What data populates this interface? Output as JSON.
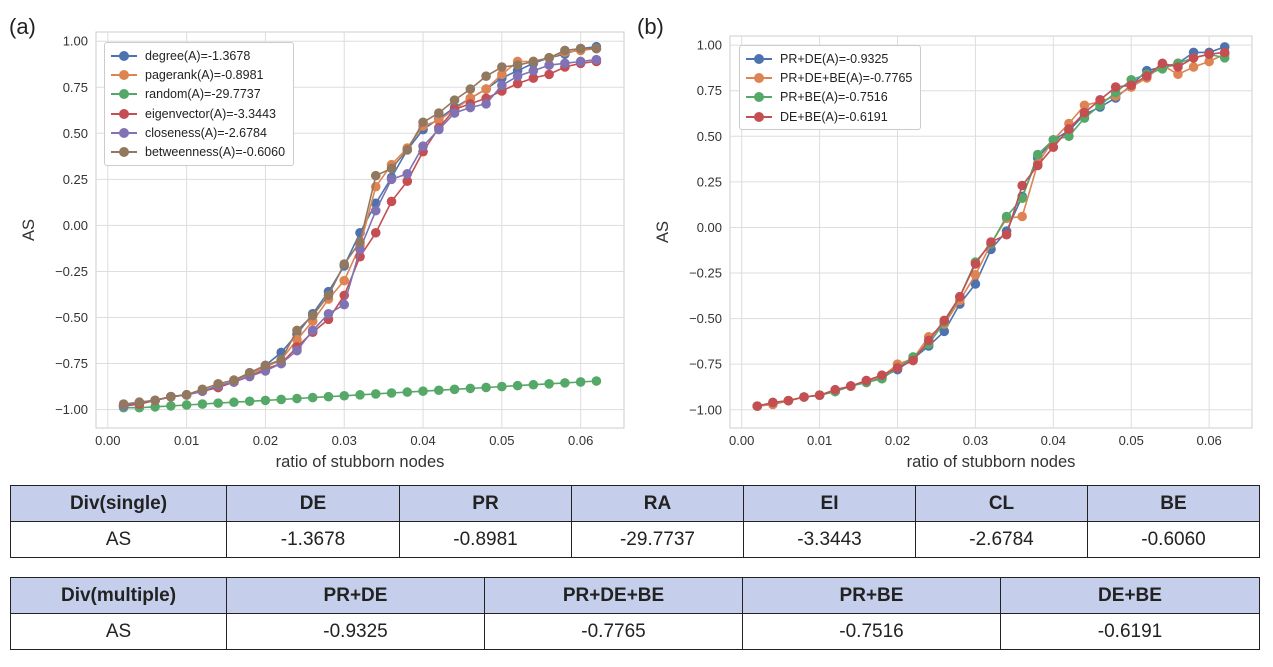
{
  "panel_a_label": "(a)",
  "panel_b_label": "(b)",
  "chart_data": [
    {
      "type": "line",
      "panel": "(a)",
      "xlabel": "ratio of stubborn nodes",
      "ylabel": "AS",
      "xlim": [
        -0.0015,
        0.0655
      ],
      "ylim": [
        -1.1,
        1.05
      ],
      "xticks": [
        0.0,
        0.01,
        0.02,
        0.03,
        0.04,
        0.05,
        0.06
      ],
      "xtick_labels": [
        "0.00",
        "0.01",
        "0.02",
        "0.03",
        "0.04",
        "0.05",
        "0.06"
      ],
      "yticks": [
        -1.0,
        -0.75,
        -0.5,
        -0.25,
        0.0,
        0.25,
        0.5,
        0.75,
        1.0
      ],
      "ytick_labels": [
        "−1.00",
        "−0.75",
        "−0.50",
        "−0.25",
        "0.00",
        "0.25",
        "0.50",
        "0.75",
        "1.00"
      ],
      "grid": true,
      "legend_position": "top-left",
      "x": [
        0.002,
        0.004,
        0.006,
        0.008,
        0.01,
        0.012,
        0.014,
        0.016,
        0.018,
        0.02,
        0.022,
        0.024,
        0.026,
        0.028,
        0.03,
        0.032,
        0.034,
        0.036,
        0.038,
        0.04,
        0.042,
        0.044,
        0.046,
        0.048,
        0.05,
        0.052,
        0.054,
        0.056,
        0.058,
        0.06,
        0.062
      ],
      "series": [
        {
          "name": "degree(A)=-1.3678",
          "color": "#4c72b0",
          "values": [
            -0.98,
            -0.97,
            -0.95,
            -0.93,
            -0.92,
            -0.9,
            -0.88,
            -0.85,
            -0.8,
            -0.76,
            -0.69,
            -0.59,
            -0.48,
            -0.36,
            -0.22,
            -0.04,
            0.12,
            0.26,
            0.41,
            0.52,
            0.58,
            0.64,
            0.69,
            0.74,
            0.8,
            0.84,
            0.88,
            0.91,
            0.93,
            0.96,
            0.97
          ]
        },
        {
          "name": "pagerank(A)=-0.8981",
          "color": "#dd8452",
          "values": [
            -0.98,
            -0.96,
            -0.95,
            -0.93,
            -0.92,
            -0.9,
            -0.87,
            -0.85,
            -0.81,
            -0.77,
            -0.73,
            -0.62,
            -0.52,
            -0.4,
            -0.3,
            -0.11,
            0.21,
            0.33,
            0.42,
            0.54,
            0.57,
            0.63,
            0.69,
            0.74,
            0.82,
            0.89,
            0.89,
            0.91,
            0.94,
            0.95,
            0.96
          ]
        },
        {
          "name": "random(A)=-29.7737",
          "color": "#55a868",
          "values": [
            -0.99,
            -0.99,
            -0.985,
            -0.98,
            -0.975,
            -0.97,
            -0.965,
            -0.96,
            -0.955,
            -0.95,
            -0.945,
            -0.94,
            -0.935,
            -0.93,
            -0.925,
            -0.92,
            -0.915,
            -0.91,
            -0.905,
            -0.9,
            -0.895,
            -0.89,
            -0.885,
            -0.88,
            -0.875,
            -0.87,
            -0.865,
            -0.86,
            -0.855,
            -0.85,
            -0.845
          ]
        },
        {
          "name": "eigenvector(A)=-3.3443",
          "color": "#c44e52",
          "values": [
            -0.98,
            -0.97,
            -0.95,
            -0.93,
            -0.92,
            -0.9,
            -0.88,
            -0.85,
            -0.82,
            -0.78,
            -0.75,
            -0.66,
            -0.58,
            -0.51,
            -0.38,
            -0.17,
            -0.04,
            0.13,
            0.24,
            0.4,
            0.53,
            0.63,
            0.66,
            0.69,
            0.73,
            0.77,
            0.8,
            0.82,
            0.86,
            0.88,
            0.89
          ]
        },
        {
          "name": "closeness(A)=-2.6784",
          "color": "#8172b3",
          "values": [
            -0.98,
            -0.96,
            -0.95,
            -0.93,
            -0.92,
            -0.9,
            -0.87,
            -0.85,
            -0.82,
            -0.79,
            -0.75,
            -0.68,
            -0.57,
            -0.48,
            -0.43,
            -0.13,
            0.08,
            0.25,
            0.28,
            0.43,
            0.52,
            0.61,
            0.64,
            0.66,
            0.76,
            0.81,
            0.84,
            0.87,
            0.88,
            0.89,
            0.9
          ]
        },
        {
          "name": "betweenness(A)=-0.6060",
          "color": "#937860",
          "values": [
            -0.97,
            -0.96,
            -0.95,
            -0.93,
            -0.92,
            -0.89,
            -0.86,
            -0.84,
            -0.8,
            -0.76,
            -0.73,
            -0.57,
            -0.49,
            -0.38,
            -0.21,
            -0.09,
            0.27,
            0.31,
            0.41,
            0.56,
            0.61,
            0.68,
            0.74,
            0.81,
            0.86,
            0.87,
            0.89,
            0.91,
            0.95,
            0.96,
            0.96
          ]
        }
      ]
    },
    {
      "type": "line",
      "panel": "(b)",
      "xlabel": "ratio of stubborn nodes",
      "ylabel": "AS",
      "xlim": [
        -0.0015,
        0.0655
      ],
      "ylim": [
        -1.1,
        1.05
      ],
      "xticks": [
        0.0,
        0.01,
        0.02,
        0.03,
        0.04,
        0.05,
        0.06
      ],
      "xtick_labels": [
        "0.00",
        "0.01",
        "0.02",
        "0.03",
        "0.04",
        "0.05",
        "0.06"
      ],
      "yticks": [
        -1.0,
        -0.75,
        -0.5,
        -0.25,
        0.0,
        0.25,
        0.5,
        0.75,
        1.0
      ],
      "ytick_labels": [
        "−1.00",
        "−0.75",
        "−0.50",
        "−0.25",
        "0.00",
        "0.25",
        "0.50",
        "0.75",
        "1.00"
      ],
      "grid": true,
      "legend_position": "top-left",
      "x": [
        0.002,
        0.004,
        0.006,
        0.008,
        0.01,
        0.012,
        0.014,
        0.016,
        0.018,
        0.02,
        0.022,
        0.024,
        0.026,
        0.028,
        0.03,
        0.032,
        0.034,
        0.036,
        0.038,
        0.04,
        0.042,
        0.044,
        0.046,
        0.048,
        0.05,
        0.052,
        0.054,
        0.056,
        0.058,
        0.06,
        0.062
      ],
      "series": [
        {
          "name": "PR+DE(A)=-0.9325",
          "color": "#4c72b0",
          "values": [
            -0.98,
            -0.97,
            -0.95,
            -0.93,
            -0.92,
            -0.9,
            -0.87,
            -0.85,
            -0.82,
            -0.78,
            -0.72,
            -0.65,
            -0.57,
            -0.42,
            -0.31,
            -0.12,
            -0.02,
            0.17,
            0.38,
            0.48,
            0.53,
            0.62,
            0.66,
            0.71,
            0.78,
            0.86,
            0.88,
            0.9,
            0.96,
            0.96,
            0.99
          ]
        },
        {
          "name": "PR+DE+BE(A)=-0.7765",
          "color": "#dd8452",
          "values": [
            -0.98,
            -0.97,
            -0.95,
            -0.93,
            -0.92,
            -0.9,
            -0.87,
            -0.84,
            -0.82,
            -0.75,
            -0.72,
            -0.6,
            -0.53,
            -0.4,
            -0.26,
            -0.09,
            0.05,
            0.06,
            0.35,
            0.48,
            0.57,
            0.67,
            0.69,
            0.72,
            0.77,
            0.82,
            0.89,
            0.84,
            0.88,
            0.91,
            0.95
          ]
        },
        {
          "name": "PR+BE(A)=-0.7516",
          "color": "#55a868",
          "values": [
            -0.98,
            -0.96,
            -0.95,
            -0.93,
            -0.92,
            -0.9,
            -0.87,
            -0.85,
            -0.83,
            -0.77,
            -0.71,
            -0.64,
            -0.52,
            -0.38,
            -0.19,
            -0.09,
            0.06,
            0.16,
            0.4,
            0.48,
            0.5,
            0.6,
            0.67,
            0.74,
            0.81,
            0.84,
            0.87,
            0.9,
            0.93,
            0.95,
            0.93
          ]
        },
        {
          "name": "DE+BE(A)=-0.6191",
          "color": "#c44e52",
          "values": [
            -0.98,
            -0.96,
            -0.95,
            -0.93,
            -0.92,
            -0.89,
            -0.87,
            -0.84,
            -0.81,
            -0.77,
            -0.73,
            -0.62,
            -0.51,
            -0.38,
            -0.2,
            -0.08,
            -0.04,
            0.23,
            0.34,
            0.44,
            0.54,
            0.63,
            0.7,
            0.77,
            0.78,
            0.83,
            0.9,
            0.88,
            0.93,
            0.95,
            0.96
          ]
        }
      ]
    }
  ],
  "table_single": {
    "header": [
      "Div(single)",
      "DE",
      "PR",
      "RA",
      "EI",
      "CL",
      "BE"
    ],
    "row": [
      "AS",
      "-1.3678",
      "-0.8981",
      "-29.7737",
      "-3.3443",
      "-2.6784",
      "-0.6060"
    ]
  },
  "table_multiple": {
    "header": [
      "Div(multiple)",
      "PR+DE",
      "PR+DE+BE",
      "PR+BE",
      "DE+BE"
    ],
    "row": [
      "AS",
      "-0.9325",
      "-0.7765",
      "-0.7516",
      "-0.6191"
    ]
  }
}
